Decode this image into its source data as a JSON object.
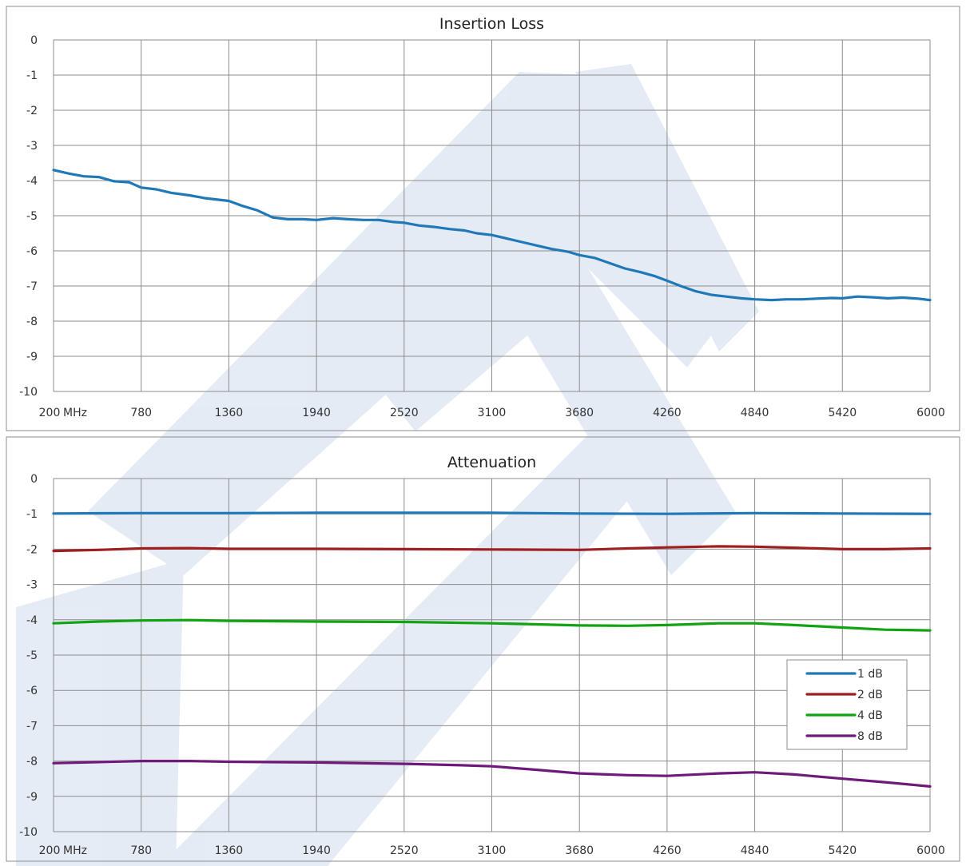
{
  "chart_data": [
    {
      "type": "line",
      "title": "Insertion Loss",
      "xlabel": "",
      "ylabel": "",
      "x_ticks": [
        "200",
        "780",
        "1360",
        "1940",
        "2520",
        "3100",
        "3680",
        "4260",
        "4840",
        "5420",
        "6000"
      ],
      "x_unit": "MHz",
      "y_ticks": [
        "0",
        "-1",
        "-2",
        "-3",
        "-4",
        "-5",
        "-6",
        "-7",
        "-8",
        "-9",
        "-10"
      ],
      "xlim": [
        200,
        6000
      ],
      "ylim": [
        -10,
        0
      ],
      "grid": true,
      "legend": "none",
      "series": [
        {
          "name": "",
          "color": "#1f78b8",
          "points": [
            [
              200,
              -3.7
            ],
            [
              300,
              -3.8
            ],
            [
              400,
              -3.88
            ],
            [
              500,
              -3.9
            ],
            [
              600,
              -4.02
            ],
            [
              700,
              -4.05
            ],
            [
              780,
              -4.2
            ],
            [
              880,
              -4.25
            ],
            [
              980,
              -4.35
            ],
            [
              1100,
              -4.42
            ],
            [
              1200,
              -4.5
            ],
            [
              1360,
              -4.58
            ],
            [
              1450,
              -4.72
            ],
            [
              1550,
              -4.85
            ],
            [
              1650,
              -5.05
            ],
            [
              1750,
              -5.1
            ],
            [
              1850,
              -5.1
            ],
            [
              1940,
              -5.12
            ],
            [
              2050,
              -5.07
            ],
            [
              2150,
              -5.1
            ],
            [
              2250,
              -5.12
            ],
            [
              2350,
              -5.12
            ],
            [
              2450,
              -5.18
            ],
            [
              2520,
              -5.2
            ],
            [
              2620,
              -5.28
            ],
            [
              2720,
              -5.32
            ],
            [
              2820,
              -5.38
            ],
            [
              2920,
              -5.42
            ],
            [
              3000,
              -5.5
            ],
            [
              3100,
              -5.55
            ],
            [
              3200,
              -5.65
            ],
            [
              3300,
              -5.75
            ],
            [
              3400,
              -5.85
            ],
            [
              3500,
              -5.95
            ],
            [
              3600,
              -6.02
            ],
            [
              3680,
              -6.12
            ],
            [
              3780,
              -6.2
            ],
            [
              3880,
              -6.35
            ],
            [
              3980,
              -6.5
            ],
            [
              4080,
              -6.6
            ],
            [
              4180,
              -6.72
            ],
            [
              4260,
              -6.85
            ],
            [
              4350,
              -7.0
            ],
            [
              4450,
              -7.15
            ],
            [
              4550,
              -7.25
            ],
            [
              4650,
              -7.3
            ],
            [
              4750,
              -7.35
            ],
            [
              4840,
              -7.38
            ],
            [
              4950,
              -7.4
            ],
            [
              5050,
              -7.38
            ],
            [
              5150,
              -7.38
            ],
            [
              5250,
              -7.36
            ],
            [
              5350,
              -7.34
            ],
            [
              5420,
              -7.35
            ],
            [
              5520,
              -7.3
            ],
            [
              5620,
              -7.32
            ],
            [
              5720,
              -7.35
            ],
            [
              5820,
              -7.33
            ],
            [
              5920,
              -7.36
            ],
            [
              6000,
              -7.4
            ]
          ]
        }
      ]
    },
    {
      "type": "line",
      "title": "Attenuation",
      "xlabel": "",
      "ylabel": "",
      "x_ticks": [
        "200",
        "780",
        "1360",
        "1940",
        "2520",
        "3100",
        "3680",
        "4260",
        "4840",
        "5420",
        "6000"
      ],
      "x_unit": "MHz",
      "y_ticks": [
        "0",
        "-1",
        "-2",
        "-3",
        "-4",
        "-5",
        "-6",
        "-7",
        "-8",
        "-9",
        "-10"
      ],
      "xlim": [
        200,
        6000
      ],
      "ylim": [
        -10,
        0
      ],
      "grid": true,
      "legend": "right",
      "series": [
        {
          "name": "1 dB",
          "color": "#1f78b8",
          "points": [
            [
              200,
              -0.99
            ],
            [
              780,
              -0.98
            ],
            [
              1360,
              -0.98
            ],
            [
              1940,
              -0.97
            ],
            [
              2520,
              -0.97
            ],
            [
              3100,
              -0.97
            ],
            [
              3680,
              -0.99
            ],
            [
              4260,
              -1.0
            ],
            [
              4840,
              -0.98
            ],
            [
              5420,
              -0.99
            ],
            [
              6000,
              -1.0
            ]
          ]
        },
        {
          "name": "2 dB",
          "color": "#9e1f1f",
          "points": [
            [
              200,
              -2.05
            ],
            [
              500,
              -2.02
            ],
            [
              780,
              -1.98
            ],
            [
              1100,
              -1.97
            ],
            [
              1360,
              -1.99
            ],
            [
              1940,
              -1.99
            ],
            [
              2520,
              -2.0
            ],
            [
              3100,
              -2.01
            ],
            [
              3680,
              -2.02
            ],
            [
              4000,
              -1.98
            ],
            [
              4260,
              -1.95
            ],
            [
              4600,
              -1.92
            ],
            [
              4840,
              -1.93
            ],
            [
              5100,
              -1.96
            ],
            [
              5420,
              -2.0
            ],
            [
              5700,
              -2.0
            ],
            [
              6000,
              -1.98
            ]
          ]
        },
        {
          "name": "4 dB",
          "color": "#12a312",
          "points": [
            [
              200,
              -4.1
            ],
            [
              500,
              -4.05
            ],
            [
              780,
              -4.02
            ],
            [
              1100,
              -4.01
            ],
            [
              1360,
              -4.03
            ],
            [
              1940,
              -4.05
            ],
            [
              2520,
              -4.06
            ],
            [
              3100,
              -4.1
            ],
            [
              3400,
              -4.13
            ],
            [
              3680,
              -4.16
            ],
            [
              4000,
              -4.17
            ],
            [
              4260,
              -4.15
            ],
            [
              4600,
              -4.1
            ],
            [
              4840,
              -4.1
            ],
            [
              5100,
              -4.15
            ],
            [
              5420,
              -4.22
            ],
            [
              5700,
              -4.28
            ],
            [
              6000,
              -4.3
            ]
          ]
        },
        {
          "name": "8 dB",
          "color": "#6e1a7a",
          "points": [
            [
              200,
              -8.06
            ],
            [
              500,
              -8.03
            ],
            [
              780,
              -8.0
            ],
            [
              1100,
              -8.0
            ],
            [
              1360,
              -8.02
            ],
            [
              1940,
              -8.04
            ],
            [
              2520,
              -8.08
            ],
            [
              2900,
              -8.12
            ],
            [
              3100,
              -8.15
            ],
            [
              3400,
              -8.25
            ],
            [
              3680,
              -8.35
            ],
            [
              4000,
              -8.4
            ],
            [
              4260,
              -8.42
            ],
            [
              4600,
              -8.35
            ],
            [
              4840,
              -8.32
            ],
            [
              5100,
              -8.38
            ],
            [
              5420,
              -8.5
            ],
            [
              5700,
              -8.6
            ],
            [
              6000,
              -8.72
            ]
          ]
        }
      ]
    }
  ]
}
